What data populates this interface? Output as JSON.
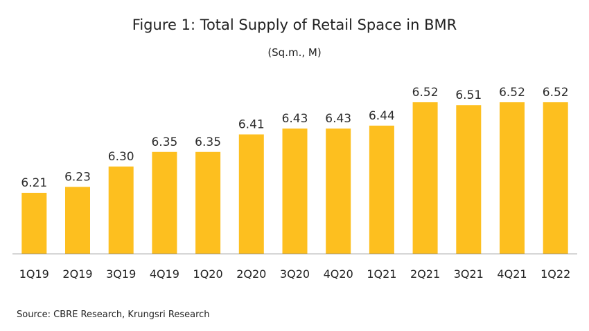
{
  "chart_data": {
    "type": "bar",
    "title": "Figure 1: Total Supply of Retail Space in BMR",
    "subtitle": "(Sq.m., M)",
    "categories": [
      "1Q19",
      "2Q19",
      "3Q19",
      "4Q19",
      "1Q20",
      "2Q20",
      "3Q20",
      "4Q20",
      "1Q21",
      "2Q21",
      "3Q21",
      "4Q21",
      "1Q22"
    ],
    "values": [
      6.21,
      6.23,
      6.3,
      6.35,
      6.35,
      6.41,
      6.43,
      6.43,
      6.44,
      6.52,
      6.51,
      6.52,
      6.52
    ],
    "value_labels": [
      "6.21",
      "6.23",
      "6.30",
      "6.35",
      "6.35",
      "6.41",
      "6.43",
      "6.43",
      "6.44",
      "6.52",
      "6.51",
      "6.52",
      "6.52"
    ],
    "ylim": [
      6.0,
      6.55
    ],
    "grid": false,
    "legend": "none",
    "bar_color": "#FDBF1F",
    "axis_color": "#8C8C8C"
  },
  "source": "Source: CBRE Research, Krungsri Research"
}
